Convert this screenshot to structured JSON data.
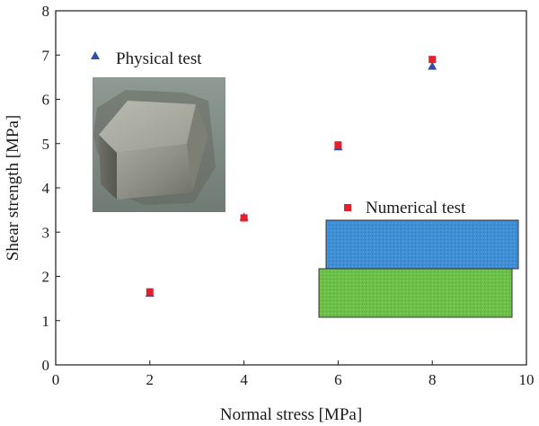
{
  "chart_data": {
    "type": "scatter",
    "xlabel": "Normal stress [MPa]",
    "ylabel": "Shear strength [MPa]",
    "xlim": [
      0,
      10
    ],
    "ylim": [
      0,
      8
    ],
    "xticks": [
      0,
      2,
      4,
      6,
      8,
      10
    ],
    "yticks": [
      0,
      1,
      2,
      3,
      4,
      5,
      6,
      7,
      8
    ],
    "grid": false,
    "series": [
      {
        "name": "Physical test",
        "marker": "triangle",
        "color": "#2e4fa3",
        "x": [
          2,
          4,
          6,
          8
        ],
        "y": [
          1.62,
          3.34,
          4.93,
          6.75
        ]
      },
      {
        "name": "Numerical test",
        "marker": "square",
        "color": "#e3202a",
        "x": [
          2,
          4,
          6,
          8
        ],
        "y": [
          1.65,
          3.32,
          4.97,
          6.9
        ]
      }
    ],
    "insets": {
      "physical_specimen": {
        "color": "#8f9085"
      },
      "numerical_model": {
        "top_block_color": "#3f8fd6",
        "bottom_block_color": "#6cc04a"
      }
    }
  }
}
